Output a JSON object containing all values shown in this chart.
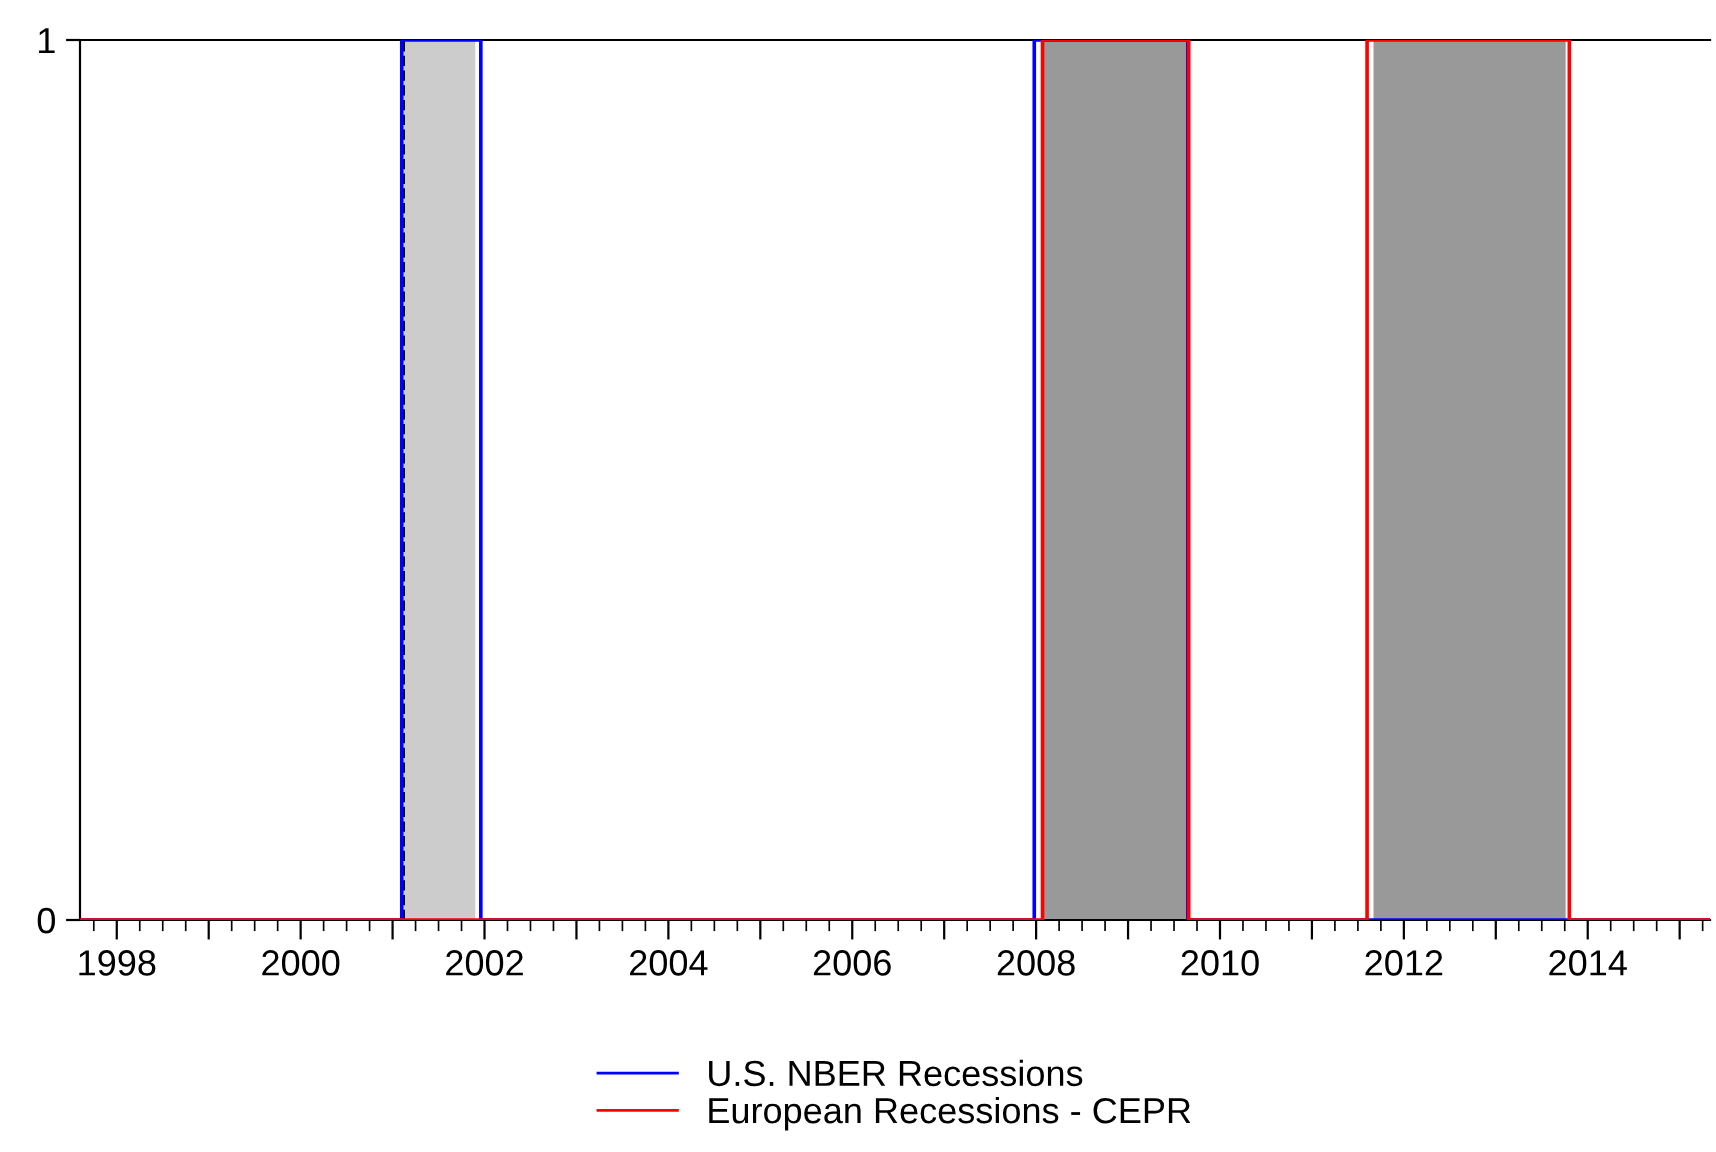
{
  "chart_data": {
    "type": "step",
    "series": [
      {
        "name": "U.S. NBER Recessions",
        "color": "#0000ff",
        "x": [
          1997.6,
          2001.1,
          2001.96,
          2007.98,
          2009.65,
          2015.33
        ],
        "values": [
          0,
          1,
          0,
          1,
          0,
          0
        ]
      },
      {
        "name": "European Recessions - CEPR",
        "color": "#ff0000",
        "x": [
          1997.6,
          2008.07,
          2009.66,
          2011.6,
          2013.8,
          2015.33
        ],
        "values": [
          0,
          1,
          0,
          1,
          0,
          0
        ]
      }
    ],
    "bands": [
      {
        "axis": "x",
        "from": 2001.12,
        "to": 2001.9,
        "color": "#cccccc"
      },
      {
        "axis": "x",
        "from": 2008.07,
        "to": 2009.65,
        "color": "#999999"
      },
      {
        "axis": "x",
        "from": 2011.67,
        "to": 2013.76,
        "color": "#999999"
      }
    ],
    "ref_lines": [
      {
        "axis": "x",
        "value": 2001.12,
        "color": "#000000",
        "line_style": "dashed"
      }
    ],
    "xlim": [
      1997.6,
      2015.33
    ],
    "xticks": [
      {
        "value": 1998,
        "label": "1998"
      },
      {
        "value": 1999,
        "label": null
      },
      {
        "value": 2000,
        "label": "2000"
      },
      {
        "value": 2001,
        "label": null
      },
      {
        "value": 2002,
        "label": "2002"
      },
      {
        "value": 2003,
        "label": null
      },
      {
        "value": 2004,
        "label": "2004"
      },
      {
        "value": 2005,
        "label": null
      },
      {
        "value": 2006,
        "label": "2006"
      },
      {
        "value": 2007,
        "label": null
      },
      {
        "value": 2008,
        "label": "2008"
      },
      {
        "value": 2009,
        "label": null
      },
      {
        "value": 2010,
        "label": "2010"
      },
      {
        "value": 2011,
        "label": null
      },
      {
        "value": 2012,
        "label": "2012"
      },
      {
        "value": 2013,
        "label": null
      },
      {
        "value": 2014,
        "label": "2014"
      },
      {
        "value": 2015,
        "label": null
      }
    ],
    "ylim": [
      0,
      1
    ],
    "yticks": [
      0,
      1
    ],
    "grid": false,
    "legend": "bottom"
  }
}
